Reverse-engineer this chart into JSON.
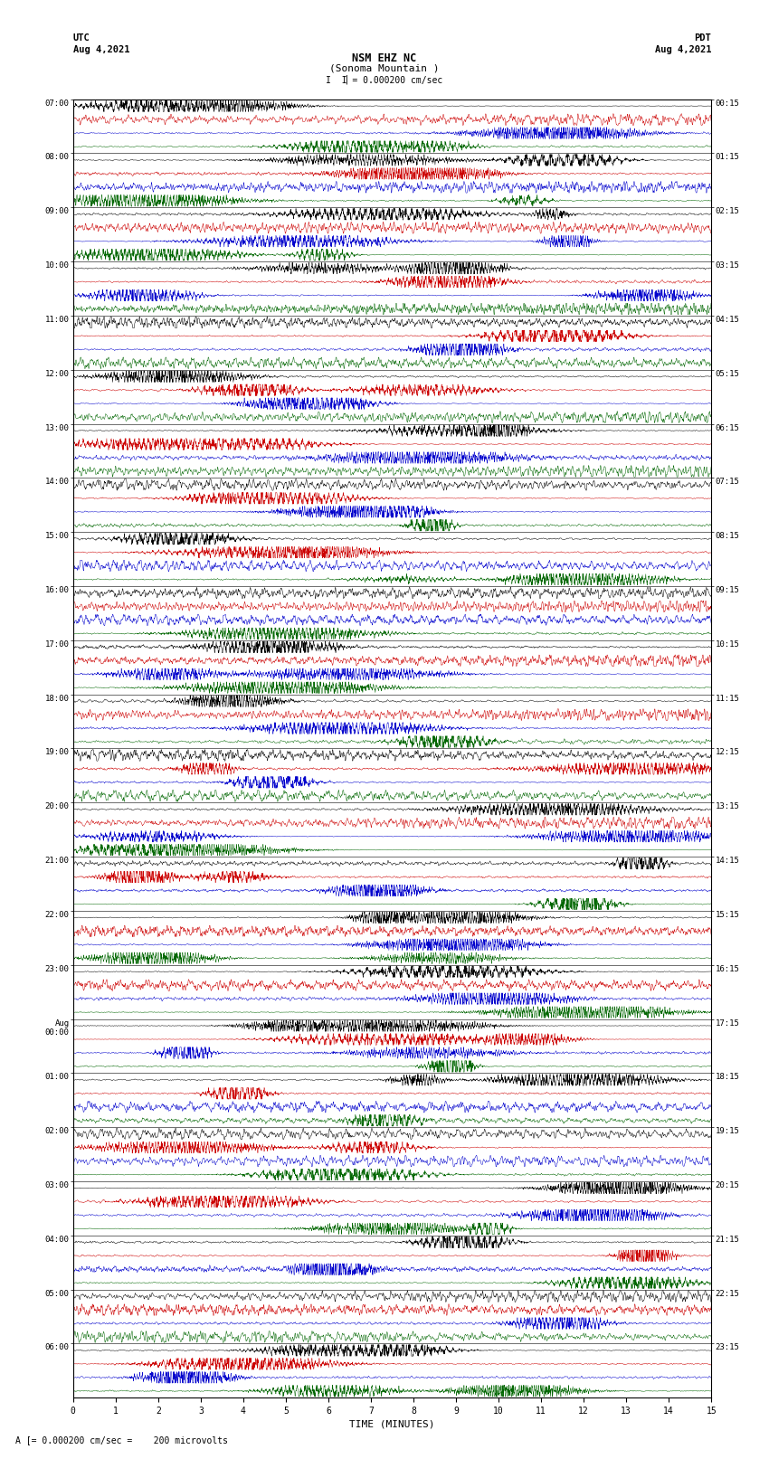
{
  "title_line1": "NSM EHZ NC",
  "title_line2": "(Sonoma Mountain )",
  "title_scale": "I = 0.000200 cm/sec",
  "left_header1": "UTC",
  "left_header2": "Aug 4,2021",
  "right_header1": "PDT",
  "right_header2": "Aug 4,2021",
  "xlabel": "TIME (MINUTES)",
  "footer": "A [= 0.000200 cm/sec =    200 microvolts",
  "utc_times": [
    "07:00",
    "08:00",
    "09:00",
    "10:00",
    "11:00",
    "12:00",
    "13:00",
    "14:00",
    "15:00",
    "16:00",
    "17:00",
    "18:00",
    "19:00",
    "20:00",
    "21:00",
    "22:00",
    "23:00",
    "Aug\n00:00",
    "01:00",
    "02:00",
    "03:00",
    "04:00",
    "05:00",
    "06:00"
  ],
  "pdt_times": [
    "00:15",
    "01:15",
    "02:15",
    "03:15",
    "04:15",
    "05:15",
    "06:15",
    "07:15",
    "08:15",
    "09:15",
    "10:15",
    "11:15",
    "12:15",
    "13:15",
    "14:15",
    "15:15",
    "16:15",
    "17:15",
    "18:15",
    "19:15",
    "20:15",
    "21:15",
    "22:15",
    "23:15"
  ],
  "trace_color": [
    "#000000",
    "#cc0000",
    "#0000cc",
    "#006600"
  ],
  "bg_color": "white",
  "n_rows": 24,
  "n_traces_per_row": 4,
  "x_min": 0,
  "x_max": 15,
  "x_ticks": [
    0,
    1,
    2,
    3,
    4,
    5,
    6,
    7,
    8,
    9,
    10,
    11,
    12,
    13,
    14,
    15
  ]
}
